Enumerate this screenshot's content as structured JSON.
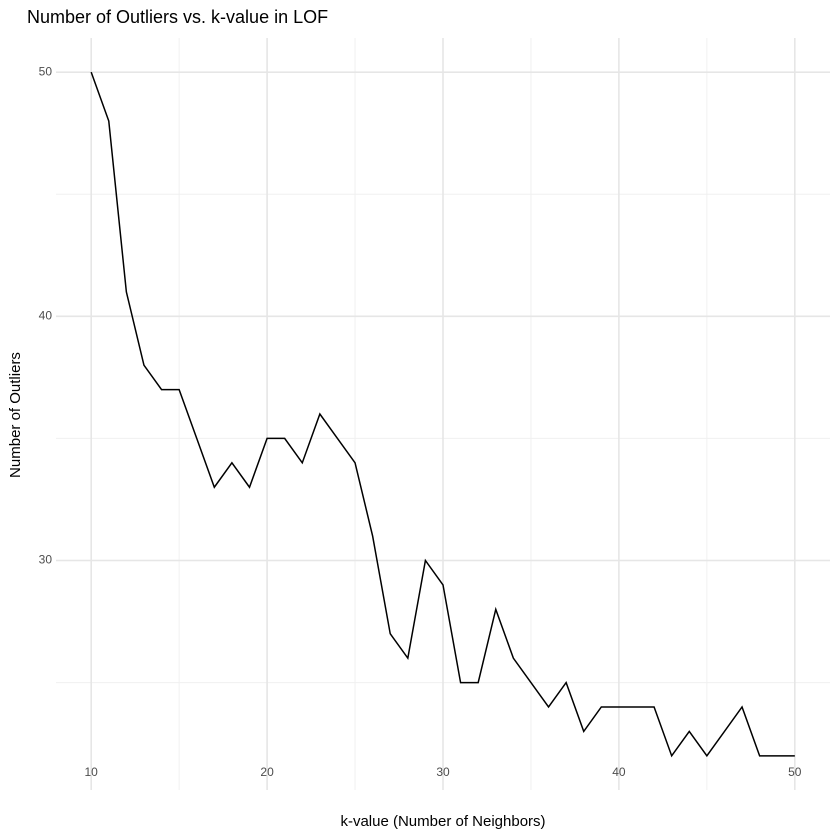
{
  "chart_data": {
    "type": "line",
    "title": "Number of Outliers vs. k-value in LOF",
    "x_label": "k-value (Number of Neighbors)",
    "y_label": "Number of Outliers",
    "x": [
      10,
      11,
      12,
      13,
      14,
      15,
      16,
      17,
      18,
      19,
      20,
      21,
      22,
      23,
      24,
      25,
      26,
      27,
      28,
      29,
      30,
      31,
      32,
      33,
      34,
      35,
      36,
      37,
      38,
      39,
      40,
      41,
      42,
      43,
      44,
      45,
      46,
      47,
      48,
      49,
      50
    ],
    "series": [
      {
        "color": "#000000",
        "values": [
          50,
          48,
          41,
          38,
          37,
          37,
          35,
          33,
          34,
          33,
          35,
          35,
          34,
          36,
          35,
          34,
          31,
          27,
          26,
          30,
          29,
          25,
          25,
          28,
          26,
          25,
          24,
          25,
          23,
          24,
          24,
          24,
          24,
          22,
          23,
          22,
          23,
          24,
          22,
          22,
          22
        ]
      }
    ],
    "xlim": [
      8,
      52
    ],
    "xticks": [
      10,
      20,
      30,
      40,
      50
    ],
    "minor_xticks": [
      15,
      25,
      35,
      45
    ],
    "ylim": [
      20.6,
      51.4
    ],
    "yticks": [
      30,
      40,
      50
    ],
    "minor_yticks": [
      25,
      35,
      45
    ],
    "grid": true
  }
}
